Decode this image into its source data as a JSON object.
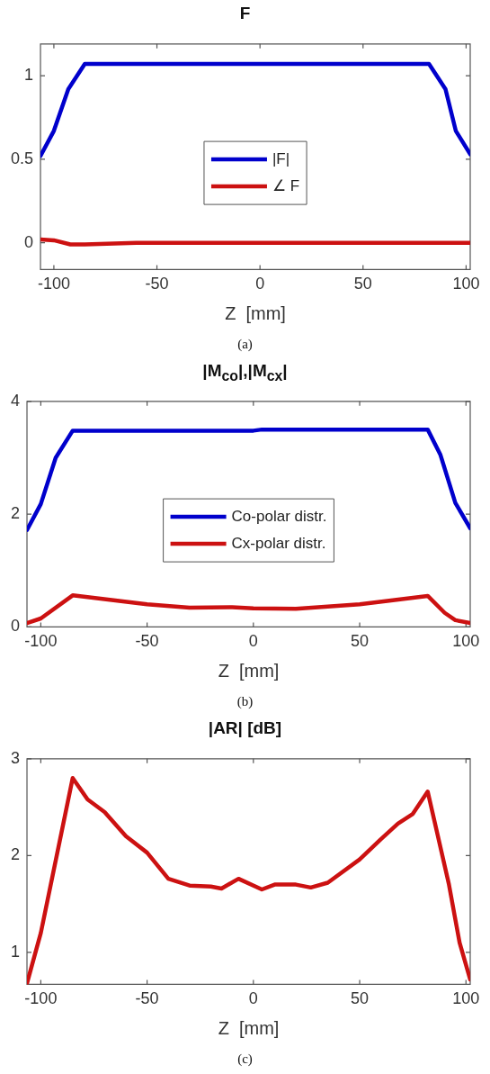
{
  "chart_data": [
    {
      "type": "line",
      "title": "F",
      "xlabel": "Z  [mm]",
      "xlim": [
        -106.5,
        102
      ],
      "xticks": [
        -100,
        -50,
        0,
        50,
        100
      ],
      "ylim": [
        -0.16,
        1.19
      ],
      "yticks": [
        0,
        0.5,
        1
      ],
      "grid": false,
      "legend": "center",
      "annotations": [
        "(a)"
      ],
      "series": [
        {
          "name": "|F|",
          "color": "#0000cc",
          "x": [
            -106.5,
            -100,
            -93,
            -85,
            0,
            82,
            90,
            95,
            102
          ],
          "values": [
            0.52,
            0.67,
            0.92,
            1.07,
            1.07,
            1.07,
            0.92,
            0.67,
            0.53
          ]
        },
        {
          "name": "∠ F",
          "color": "#cc1111",
          "x": [
            -106.5,
            -100,
            -92,
            -85,
            -60,
            0,
            102
          ],
          "values": [
            0.02,
            0.015,
            -0.01,
            -0.01,
            0,
            0,
            0
          ]
        }
      ]
    },
    {
      "type": "line",
      "title": "|M$_{co}$|,|M$_{cx}$|",
      "xlabel": "Z  [mm]",
      "xlim": [
        -106.5,
        102
      ],
      "xticks": [
        -100,
        -50,
        0,
        50,
        100
      ],
      "ylim": [
        0,
        4
      ],
      "yticks": [
        0,
        2,
        4
      ],
      "grid": false,
      "legend": "center",
      "annotations": [
        "(b)"
      ],
      "series": [
        {
          "name": "Co-polar distr.",
          "color": "#0000cc",
          "x": [
            -106.5,
            -100,
            -93,
            -85,
            0,
            4,
            82,
            88,
            95,
            102
          ],
          "values": [
            1.72,
            2.18,
            3.0,
            3.48,
            3.48,
            3.5,
            3.5,
            3.05,
            2.2,
            1.75
          ]
        },
        {
          "name": "Cx-polar distr.",
          "color": "#cc1111",
          "x": [
            -106.5,
            -100,
            -85,
            -50,
            -30,
            -10,
            0,
            20,
            50,
            82,
            90,
            95,
            102
          ],
          "values": [
            0.07,
            0.15,
            0.56,
            0.4,
            0.34,
            0.35,
            0.33,
            0.32,
            0.4,
            0.55,
            0.25,
            0.12,
            0.07
          ]
        }
      ]
    },
    {
      "type": "line",
      "title": "|AR| [dB]",
      "xlabel": "Z  [mm]",
      "xlim": [
        -106.5,
        102
      ],
      "xticks": [
        -100,
        -50,
        0,
        50,
        100
      ],
      "ylim": [
        0.67,
        3
      ],
      "yticks": [
        1,
        2,
        3
      ],
      "grid": false,
      "annotations": [
        "(c)"
      ],
      "series": [
        {
          "color": "#cc1111",
          "x": [
            -106.5,
            -100,
            -85,
            -78,
            -70,
            -60,
            -50,
            -40,
            -30,
            -20,
            -15,
            -7,
            4,
            10,
            20,
            27,
            35,
            50,
            60,
            68,
            75,
            82,
            92,
            97,
            102
          ],
          "values": [
            0.68,
            1.2,
            2.8,
            2.58,
            2.45,
            2.2,
            2.03,
            1.76,
            1.69,
            1.68,
            1.66,
            1.76,
            1.65,
            1.7,
            1.7,
            1.67,
            1.72,
            1.96,
            2.17,
            2.33,
            2.43,
            2.66,
            1.7,
            1.1,
            0.72
          ]
        }
      ]
    }
  ]
}
